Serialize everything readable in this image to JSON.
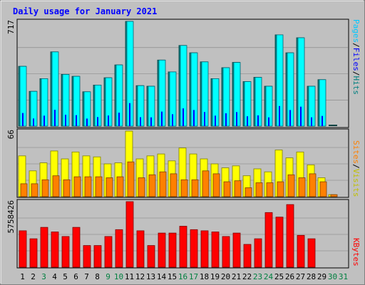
{
  "colors": {
    "background": "#c0c0c0",
    "plot_background": "#c0c0c0",
    "title": "#0000ff",
    "hits": "#00ffff",
    "hits_dark": "#008080",
    "files": "#0000ff",
    "files_dark": "#000080",
    "pages": "#00c8ff",
    "visits": "#ffff00",
    "visits_dark": "#c0c000",
    "sites": "#ff8000",
    "sites_dark": "#c06000",
    "kbytes": "#ff0000",
    "kbytes_dark": "#a00000",
    "weekday_label": "#000000",
    "weekend_label": "#008040"
  },
  "chart_data": {
    "type": "bar",
    "title": "Daily usage for January 2021",
    "categories": [
      "1",
      "2",
      "3",
      "4",
      "5",
      "6",
      "7",
      "8",
      "9",
      "10",
      "11",
      "12",
      "13",
      "14",
      "15",
      "16",
      "17",
      "18",
      "19",
      "20",
      "21",
      "22",
      "23",
      "24",
      "25",
      "26",
      "27",
      "28",
      "29",
      "30",
      "31"
    ],
    "weekend_days": [
      "3",
      "9",
      "10",
      "16",
      "17",
      "23",
      "24",
      "30",
      "31"
    ],
    "panels": [
      {
        "id": "hits",
        "max_label": "717",
        "ylim": [
          0,
          717
        ],
        "legend": [
          "Pages",
          "/",
          "Files",
          "/",
          "Hits"
        ],
        "series": [
          {
            "name": "Hits",
            "values": [
              409,
              238,
              325,
              508,
              354,
              341,
              235,
              281,
              331,
              419,
              717,
              277,
              273,
              452,
              371,
              552,
              502,
              440,
              325,
              400,
              436,
              305,
              334,
              273,
              625,
              502,
              605,
              273,
              318,
              0,
              0
            ]
          },
          {
            "name": "Files",
            "values": [
              409,
              238,
              325,
              508,
              354,
              341,
              235,
              281,
              331,
              419,
              717,
              277,
              273,
              452,
              371,
              552,
              502,
              440,
              325,
              400,
              436,
              305,
              334,
              273,
              625,
              502,
              605,
              273,
              318,
              0,
              0
            ]
          },
          {
            "name": "Pages",
            "values": [
              409,
              238,
              325,
              508,
              354,
              341,
              235,
              281,
              331,
              419,
              717,
              277,
              273,
              452,
              371,
              552,
              502,
              440,
              325,
              400,
              436,
              305,
              334,
              273,
              625,
              502,
              605,
              273,
              318,
              8,
              0
            ]
          }
        ]
      },
      {
        "id": "visits",
        "max_label": "66",
        "ylim": [
          0,
          66
        ],
        "legend": [
          "Sites",
          "/",
          "Visits"
        ],
        "series": [
          {
            "name": "Visits",
            "values": [
              41,
              26,
              34,
              46,
              38,
              45,
              41,
              40,
              33,
              34,
              66,
              38,
              41,
              43,
              36,
              49,
              43,
              38,
              33,
              29,
              31,
              21,
              28,
              25,
              47,
              39,
              45,
              32,
              19,
              2,
              0
            ]
          },
          {
            "name": "Sites",
            "values": [
              13,
              13,
              17,
              21,
              17,
              20,
              20,
              20,
              19,
              20,
              35,
              19,
              22,
              25,
              23,
              17,
              17,
              26,
              23,
              15,
              16,
              9,
              14,
              14,
              15,
              22,
              19,
              23,
              15,
              2,
              0
            ]
          }
        ]
      },
      {
        "id": "kbytes",
        "max_label": "5758426",
        "ylim": [
          0,
          5758426
        ],
        "legend": [
          "KBytes"
        ],
        "series": [
          {
            "name": "KBytes",
            "values": [
              3200000,
              2500000,
              3500000,
              3100000,
              2700000,
              3500000,
              1900000,
              1900000,
              2700000,
              3300000,
              5758426,
              3200000,
              1900000,
              3000000,
              3000000,
              3600000,
              3300000,
              3200000,
              3100000,
              2700000,
              3000000,
              2000000,
              2500000,
              4800000,
              4400000,
              5500000,
              2800000,
              2500000,
              0,
              0,
              0
            ]
          }
        ]
      }
    ]
  }
}
